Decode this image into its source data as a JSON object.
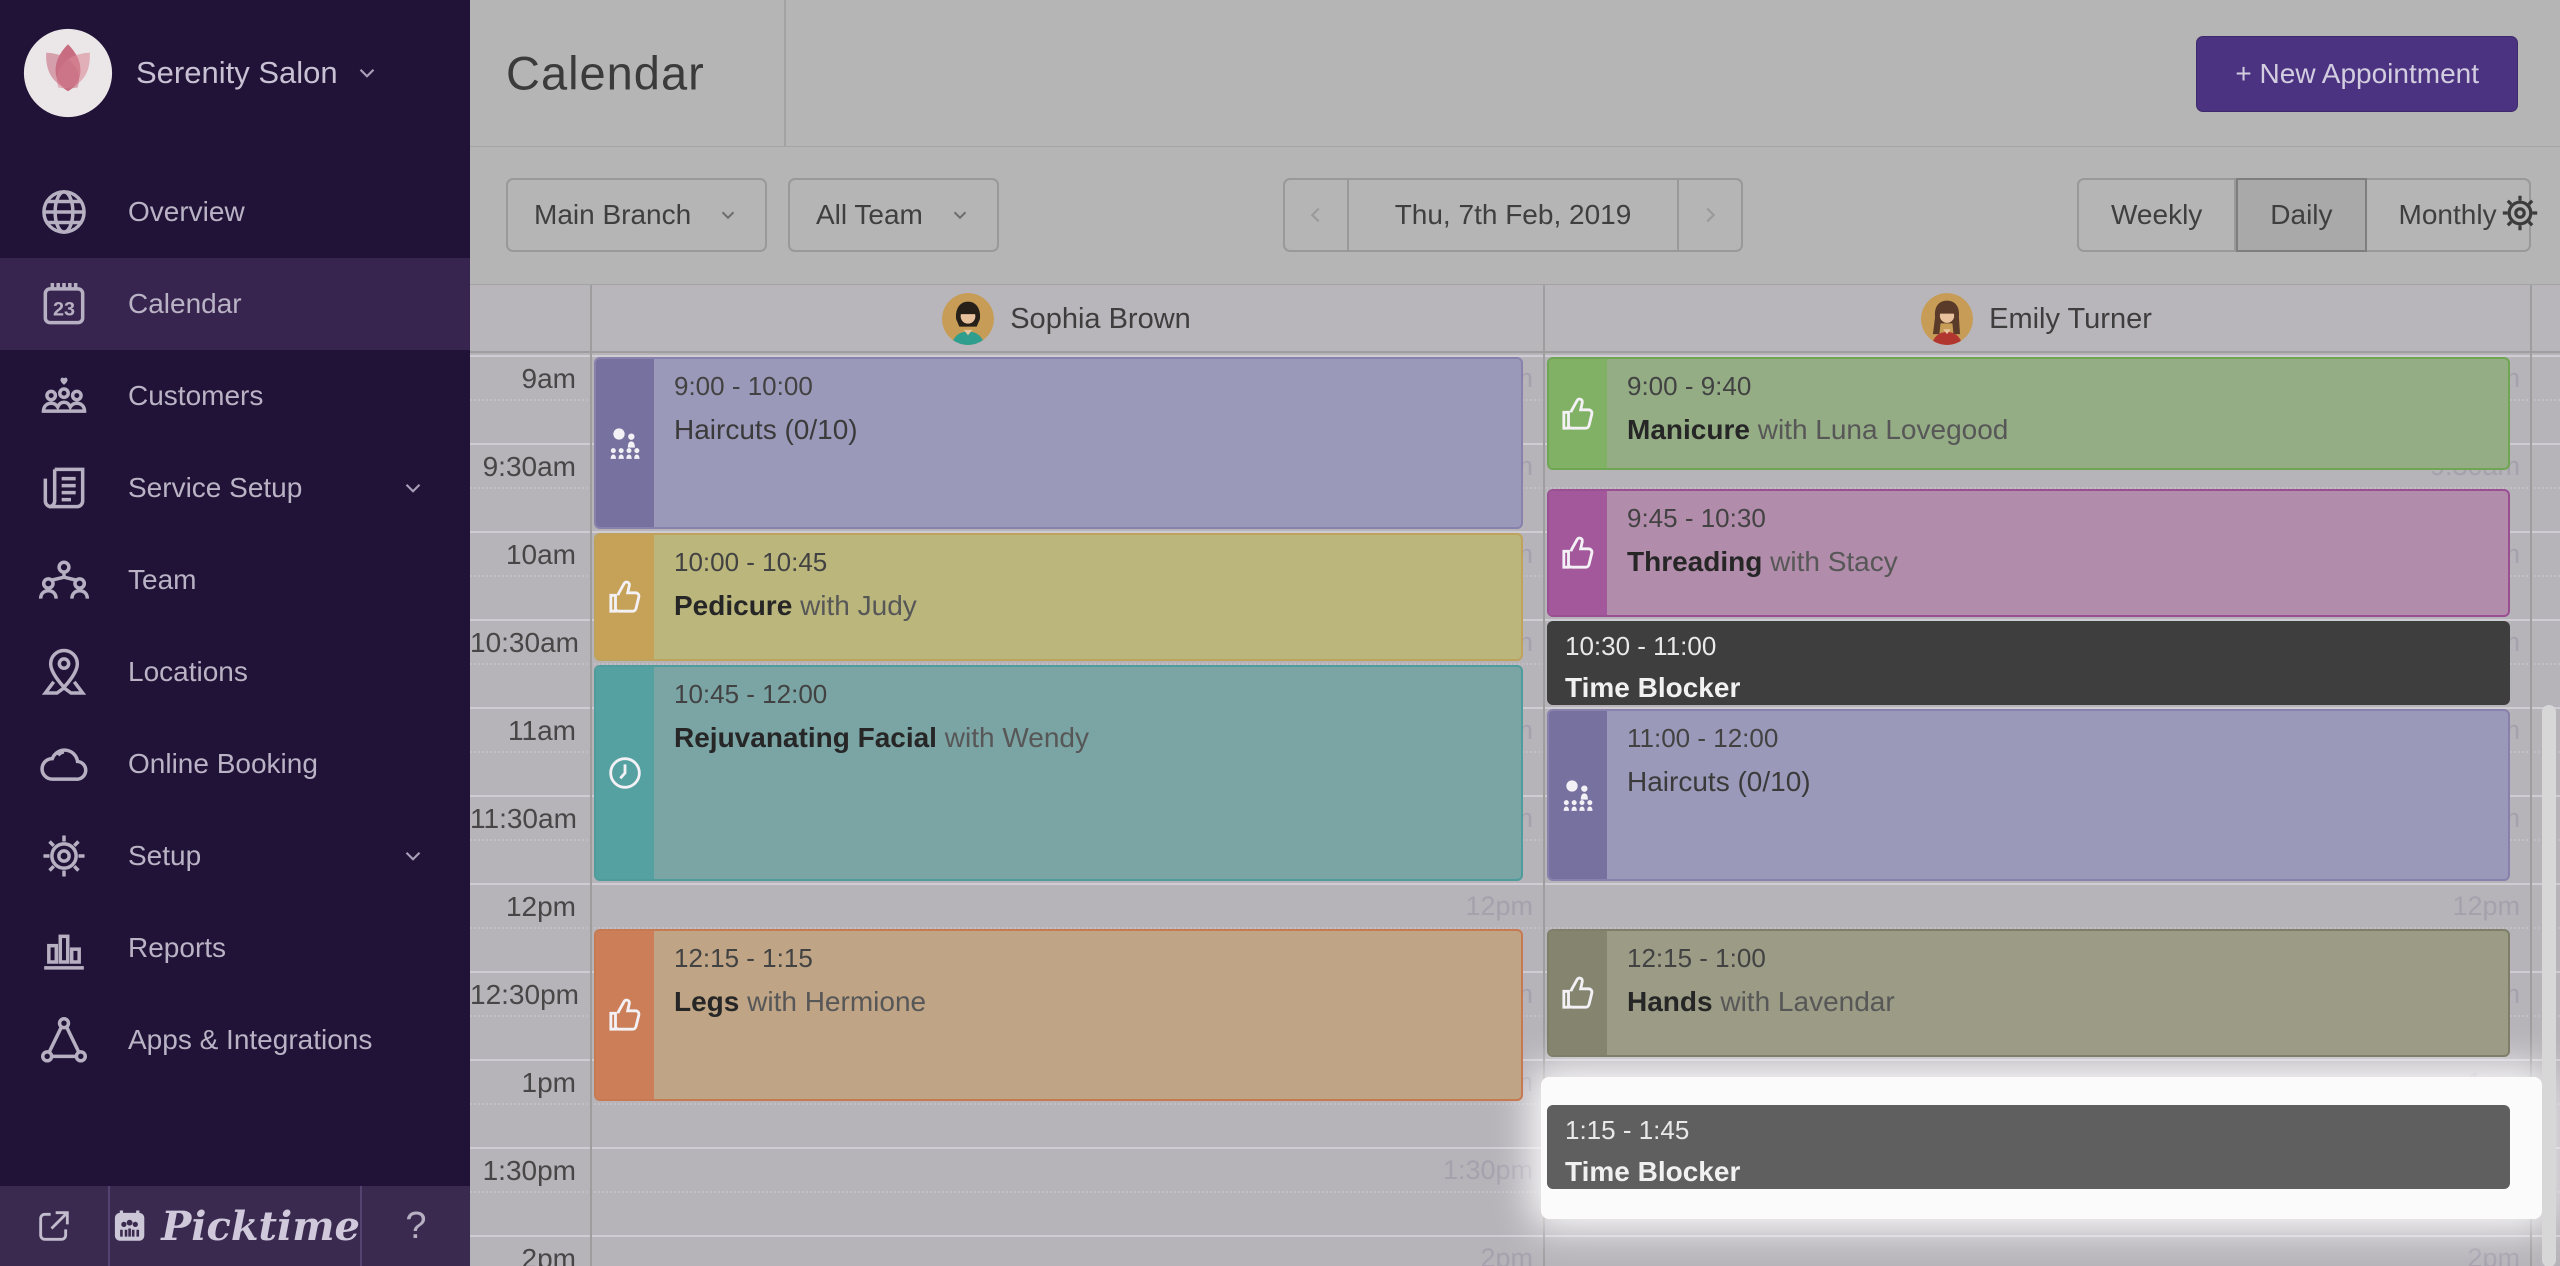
{
  "app": {
    "accent_color": "#4b3382",
    "sidebar_color": "#211337",
    "spotlight_color": "#fbfbfb"
  },
  "sidebar": {
    "brand": {
      "name": "Serenity Salon",
      "logo_icon": "lotus-logo",
      "chevron_icon": "chevron-down"
    },
    "items": [
      {
        "label": "Overview",
        "icon": "globe",
        "active": false,
        "chevron": false
      },
      {
        "label": "Calendar",
        "icon": "calendar",
        "active": true,
        "chevron": false
      },
      {
        "label": "Customers",
        "icon": "customers",
        "active": false,
        "chevron": false
      },
      {
        "label": "Service Setup",
        "icon": "service",
        "active": false,
        "chevron": true
      },
      {
        "label": "Team",
        "icon": "team",
        "active": false,
        "chevron": false
      },
      {
        "label": "Locations",
        "icon": "location",
        "active": false,
        "chevron": false
      },
      {
        "label": "Online Booking",
        "icon": "cloud",
        "active": false,
        "chevron": false
      },
      {
        "label": "Setup",
        "icon": "gear",
        "active": false,
        "chevron": true
      },
      {
        "label": "Reports",
        "icon": "reports",
        "active": false,
        "chevron": false
      },
      {
        "label": "Apps & Integrations",
        "icon": "apps",
        "active": false,
        "chevron": false
      }
    ],
    "footer": {
      "external_icon": "external-link",
      "brand": "Picktime",
      "brand_icon": "picktime-logo",
      "help": "?"
    }
  },
  "header": {
    "title": "Calendar",
    "new_appointment_label": "+ New Appointment"
  },
  "toolbar": {
    "branch_value": "Main Branch",
    "team_value": "All Team",
    "date_value": "Thu, 7th Feb, 2019",
    "views": [
      {
        "label": "Weekly",
        "active": false
      },
      {
        "label": "Daily",
        "active": true
      },
      {
        "label": "Monthly",
        "active": false
      }
    ],
    "settings_icon": "gear"
  },
  "calendar": {
    "time_labels": [
      "9am",
      "9:30am",
      "10am",
      "10:30am",
      "11am",
      "11:30am",
      "12pm",
      "12:30pm",
      "1pm",
      "1:30pm",
      "2pm"
    ],
    "columns": [
      {
        "staff": "Sophia Brown",
        "avatar": "sophia",
        "appointments": [
          {
            "time_label": "9:00 - 10:00",
            "start": "9:00",
            "end": "10:00",
            "title": "Haircuts (0/10)",
            "with": "",
            "type": "class",
            "icon": "group",
            "body": "#9b99b9",
            "stripe": "#77719f",
            "border": "#8781ac"
          },
          {
            "time_label": "10:00 - 10:45",
            "start": "10:00",
            "end": "10:45",
            "title": "Pedicure",
            "with": "Judy",
            "type": "service",
            "icon": "thumbs-up",
            "body": "#bab67c",
            "stripe": "#c6a258",
            "border": "#bfa35d"
          },
          {
            "time_label": "10:45 - 12:00",
            "start": "10:45",
            "end": "12:00",
            "title": "Rejuvanating Facial",
            "with": "Wendy",
            "type": "service",
            "icon": "clock",
            "body": "#7ba4a4",
            "stripe": "#55a0a0",
            "border": "#4f9c9c"
          },
          {
            "time_label": "12:15 - 1:15",
            "start": "12:15",
            "end": "1:15",
            "title": "Legs",
            "with": "Hermione",
            "type": "service",
            "icon": "thumbs-up",
            "body": "#bfa486",
            "stripe": "#cb7e57",
            "border": "#c77a52"
          }
        ]
      },
      {
        "staff": "Emily Turner",
        "avatar": "emily",
        "appointments": [
          {
            "time_label": "9:00 - 9:40",
            "start": "9:00",
            "end": "9:40",
            "title": "Manicure",
            "with": "Luna Lovegood",
            "type": "service",
            "icon": "thumbs-up",
            "body": "#94ad85",
            "stripe": "#81b164",
            "border": "#6fa653"
          },
          {
            "time_label": "9:45 - 10:30",
            "start": "9:45",
            "end": "10:30",
            "title": "Threading",
            "with": "Stacy",
            "type": "service",
            "icon": "thumbs-up",
            "body": "#b28cab",
            "stripe": "#a2589a",
            "border": "#9b4f93"
          },
          {
            "time_label": "10:30 - 11:00",
            "start": "10:30",
            "end": "11:00",
            "title": "Time Blocker",
            "with": "",
            "type": "blocker",
            "icon": "",
            "body": "#3e3e3e",
            "stripe": "",
            "border": "#3e3e3e"
          },
          {
            "time_label": "11:00 - 12:00",
            "start": "11:00",
            "end": "12:00",
            "title": "Haircuts (0/10)",
            "with": "",
            "type": "class",
            "icon": "group",
            "body": "#9b99b9",
            "stripe": "#77719f",
            "border": "#8781ac"
          },
          {
            "time_label": "12:15 - 1:00",
            "start": "12:15",
            "end": "1:00",
            "title": "Hands",
            "with": "Lavendar",
            "type": "service",
            "icon": "thumbs-up",
            "body": "#9b9b86",
            "stripe": "#85856f",
            "border": "#7f7f69"
          },
          {
            "time_label": "1:15 - 1:45",
            "start": "1:15",
            "end": "1:45",
            "title": "Time Blocker",
            "with": "",
            "type": "blocker",
            "icon": "",
            "body": "#5f5f5f",
            "stripe": "",
            "border": "#5f5f5f",
            "highlight": true
          }
        ]
      }
    ]
  }
}
